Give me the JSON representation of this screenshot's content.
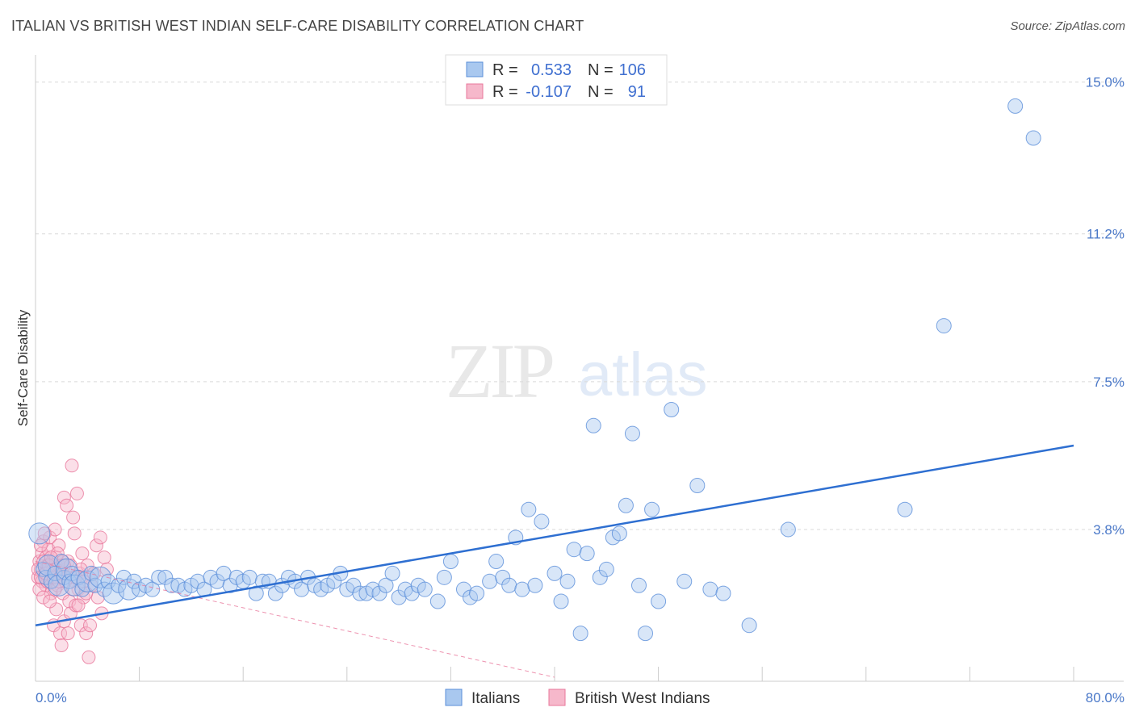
{
  "header": {
    "title": "ITALIAN VS BRITISH WEST INDIAN SELF-CARE DISABILITY CORRELATION CHART",
    "source": "Source: ZipAtlas.com"
  },
  "watermark": {
    "zip": "ZIP",
    "atlas": "atlas"
  },
  "colors": {
    "blue_fill": "#a9c8ef",
    "blue_stroke": "#5b8fd9",
    "blue_line": "#2e6fd1",
    "pink_fill": "#f6b8cb",
    "pink_stroke": "#e8779b",
    "pink_line": "#e8779b",
    "grid": "#d9d9d9",
    "tick_text": "#4a78c8"
  },
  "legend": {
    "rows": [
      {
        "r_label": "R =",
        "r_value": "0.533",
        "n_label": "N =",
        "n_value": "106"
      },
      {
        "r_label": "R =",
        "r_value": "-0.107",
        "n_label": "N =",
        "n_value": "91"
      }
    ]
  },
  "chart_data": {
    "type": "scatter",
    "title": "ITALIAN VS BRITISH WEST INDIAN SELF-CARE DISABILITY CORRELATION CHART",
    "xlabel": "",
    "ylabel": "Self-Care Disability",
    "xlim": [
      0,
      80
    ],
    "ylim": [
      0,
      15.6
    ],
    "x_tick_labels": [
      "0.0%",
      "80.0%"
    ],
    "y_ticks": [
      3.8,
      7.5,
      11.2,
      15.0
    ],
    "y_tick_labels": [
      "3.8%",
      "7.5%",
      "11.2%",
      "15.0%"
    ],
    "grid": true,
    "legend_position": "top-center",
    "series": [
      {
        "name": "Italians",
        "color": "#a9c8ef",
        "regression": {
          "x": [
            0,
            80
          ],
          "y": [
            1.4,
            5.9
          ]
        },
        "points": [
          [
            0.3,
            3.7
          ],
          [
            0.6,
            2.8
          ],
          [
            0.8,
            2.6
          ],
          [
            1.0,
            2.9
          ],
          [
            1.2,
            2.5
          ],
          [
            1.5,
            2.7
          ],
          [
            1.8,
            2.4
          ],
          [
            2.0,
            3.0
          ],
          [
            2.2,
            2.6
          ],
          [
            2.4,
            2.8
          ],
          [
            2.6,
            2.5
          ],
          [
            2.8,
            2.7
          ],
          [
            3.0,
            2.4
          ],
          [
            3.3,
            2.6
          ],
          [
            3.6,
            2.3
          ],
          [
            4.0,
            2.5
          ],
          [
            4.3,
            2.7
          ],
          [
            4.6,
            2.4
          ],
          [
            5.0,
            2.6
          ],
          [
            5.3,
            2.3
          ],
          [
            5.6,
            2.5
          ],
          [
            6.0,
            2.2
          ],
          [
            6.4,
            2.4
          ],
          [
            6.8,
            2.6
          ],
          [
            7.2,
            2.3
          ],
          [
            7.6,
            2.5
          ],
          [
            8.0,
            2.3
          ],
          [
            8.5,
            2.4
          ],
          [
            9.0,
            2.3
          ],
          [
            9.5,
            2.6
          ],
          [
            10.0,
            2.6
          ],
          [
            10.5,
            2.4
          ],
          [
            11.0,
            2.4
          ],
          [
            11.5,
            2.3
          ],
          [
            12.0,
            2.4
          ],
          [
            12.5,
            2.5
          ],
          [
            13.0,
            2.3
          ],
          [
            13.5,
            2.6
          ],
          [
            14.0,
            2.5
          ],
          [
            14.5,
            2.7
          ],
          [
            15.0,
            2.4
          ],
          [
            15.5,
            2.6
          ],
          [
            16.0,
            2.5
          ],
          [
            16.5,
            2.6
          ],
          [
            17.0,
            2.2
          ],
          [
            17.5,
            2.5
          ],
          [
            18.0,
            2.5
          ],
          [
            18.5,
            2.2
          ],
          [
            19.0,
            2.4
          ],
          [
            19.5,
            2.6
          ],
          [
            20.0,
            2.5
          ],
          [
            20.5,
            2.3
          ],
          [
            21.0,
            2.6
          ],
          [
            21.5,
            2.4
          ],
          [
            22.0,
            2.3
          ],
          [
            22.5,
            2.4
          ],
          [
            23.0,
            2.5
          ],
          [
            23.5,
            2.7
          ],
          [
            24.0,
            2.3
          ],
          [
            24.5,
            2.4
          ],
          [
            25.0,
            2.2
          ],
          [
            25.5,
            2.2
          ],
          [
            26.0,
            2.3
          ],
          [
            26.5,
            2.2
          ],
          [
            27.0,
            2.4
          ],
          [
            27.5,
            2.7
          ],
          [
            28.0,
            2.1
          ],
          [
            28.5,
            2.3
          ],
          [
            29.0,
            2.2
          ],
          [
            29.5,
            2.4
          ],
          [
            30.0,
            2.3
          ],
          [
            31.0,
            2.0
          ],
          [
            31.5,
            2.6
          ],
          [
            32.0,
            3.0
          ],
          [
            33.0,
            2.3
          ],
          [
            33.5,
            2.1
          ],
          [
            34.0,
            2.2
          ],
          [
            35.0,
            2.5
          ],
          [
            35.5,
            3.0
          ],
          [
            36.0,
            2.6
          ],
          [
            36.5,
            2.4
          ],
          [
            37.0,
            3.6
          ],
          [
            37.5,
            2.3
          ],
          [
            38.0,
            4.3
          ],
          [
            38.5,
            2.4
          ],
          [
            39.0,
            4.0
          ],
          [
            40.0,
            2.7
          ],
          [
            40.5,
            2.0
          ],
          [
            41.0,
            2.5
          ],
          [
            41.5,
            3.3
          ],
          [
            42.0,
            1.2
          ],
          [
            42.5,
            3.2
          ],
          [
            43.0,
            6.4
          ],
          [
            43.5,
            2.6
          ],
          [
            44.0,
            2.8
          ],
          [
            44.5,
            3.6
          ],
          [
            45.0,
            3.7
          ],
          [
            45.5,
            4.4
          ],
          [
            46.0,
            6.2
          ],
          [
            46.5,
            2.4
          ],
          [
            47.0,
            1.2
          ],
          [
            47.5,
            4.3
          ],
          [
            48.0,
            2.0
          ],
          [
            49.0,
            6.8
          ],
          [
            50.0,
            2.5
          ],
          [
            51.0,
            4.9
          ],
          [
            52.0,
            2.3
          ],
          [
            53.0,
            2.2
          ],
          [
            55.0,
            1.4
          ],
          [
            58.0,
            3.8
          ],
          [
            67.0,
            4.3
          ],
          [
            70.0,
            8.9
          ],
          [
            75.5,
            14.4
          ],
          [
            76.9,
            13.6
          ]
        ]
      },
      {
        "name": "British West Indians",
        "color": "#f6b8cb",
        "regression": {
          "x": [
            0,
            40
          ],
          "y": [
            3.0,
            0.1
          ]
        },
        "points": [
          [
            0.2,
            2.6
          ],
          [
            0.3,
            3.0
          ],
          [
            0.4,
            2.8
          ],
          [
            0.5,
            3.2
          ],
          [
            0.5,
            2.5
          ],
          [
            0.6,
            3.5
          ],
          [
            0.7,
            2.7
          ],
          [
            0.8,
            3.1
          ],
          [
            0.8,
            2.4
          ],
          [
            0.9,
            2.9
          ],
          [
            1.0,
            3.3
          ],
          [
            1.0,
            2.6
          ],
          [
            1.1,
            3.6
          ],
          [
            1.2,
            2.8
          ],
          [
            1.2,
            2.2
          ],
          [
            1.3,
            3.0
          ],
          [
            1.4,
            2.5
          ],
          [
            1.4,
            1.4
          ],
          [
            1.5,
            3.8
          ],
          [
            1.5,
            2.7
          ],
          [
            1.6,
            3.1
          ],
          [
            1.6,
            1.8
          ],
          [
            1.7,
            2.4
          ],
          [
            1.8,
            2.9
          ],
          [
            1.8,
            3.4
          ],
          [
            1.9,
            1.2
          ],
          [
            2.0,
            2.6
          ],
          [
            2.0,
            0.9
          ],
          [
            2.1,
            2.2
          ],
          [
            2.2,
            4.6
          ],
          [
            2.2,
            1.5
          ],
          [
            2.3,
            2.8
          ],
          [
            2.4,
            4.4
          ],
          [
            2.5,
            3.0
          ],
          [
            2.6,
            2.0
          ],
          [
            2.7,
            1.7
          ],
          [
            2.8,
            5.4
          ],
          [
            2.9,
            4.1
          ],
          [
            3.0,
            2.5
          ],
          [
            3.0,
            3.7
          ],
          [
            3.1,
            1.9
          ],
          [
            3.2,
            4.7
          ],
          [
            3.3,
            2.3
          ],
          [
            3.4,
            2.7
          ],
          [
            3.5,
            1.4
          ],
          [
            3.6,
            3.2
          ],
          [
            3.7,
            2.1
          ],
          [
            3.8,
            2.6
          ],
          [
            3.9,
            1.2
          ],
          [
            4.0,
            2.9
          ],
          [
            4.1,
            0.6
          ],
          [
            4.2,
            1.4
          ],
          [
            4.3,
            2.4
          ],
          [
            4.5,
            2.7
          ],
          [
            4.7,
            3.4
          ],
          [
            4.8,
            2.1
          ],
          [
            5.0,
            3.6
          ],
          [
            5.1,
            1.7
          ],
          [
            5.3,
            3.1
          ],
          [
            5.5,
            2.8
          ],
          [
            0.3,
            2.3
          ],
          [
            0.4,
            3.4
          ],
          [
            0.6,
            2.1
          ],
          [
            0.7,
            3.7
          ],
          [
            0.9,
            2.5
          ],
          [
            1.1,
            2.0
          ],
          [
            1.3,
            2.9
          ],
          [
            1.5,
            2.3
          ],
          [
            1.7,
            3.2
          ],
          [
            1.9,
            2.7
          ],
          [
            2.1,
            3.0
          ],
          [
            2.3,
            2.5
          ],
          [
            2.5,
            1.2
          ],
          [
            2.7,
            2.9
          ],
          [
            2.9,
            2.3
          ],
          [
            3.1,
            2.6
          ],
          [
            3.3,
            1.9
          ],
          [
            3.5,
            2.8
          ],
          [
            3.7,
            2.5
          ],
          [
            3.9,
            2.2
          ],
          [
            0.2,
            2.8
          ],
          [
            0.4,
            2.6
          ],
          [
            0.6,
            3.0
          ],
          [
            0.8,
            2.7
          ],
          [
            1.0,
            2.9
          ],
          [
            1.2,
            3.1
          ],
          [
            1.4,
            2.6
          ],
          [
            1.6,
            2.8
          ],
          [
            1.8,
            2.5
          ],
          [
            2.0,
            2.7
          ],
          [
            2.2,
            2.9
          ]
        ]
      }
    ]
  },
  "bottom_legend": {
    "items": [
      {
        "label": "Italians"
      },
      {
        "label": "British West Indians"
      }
    ]
  }
}
